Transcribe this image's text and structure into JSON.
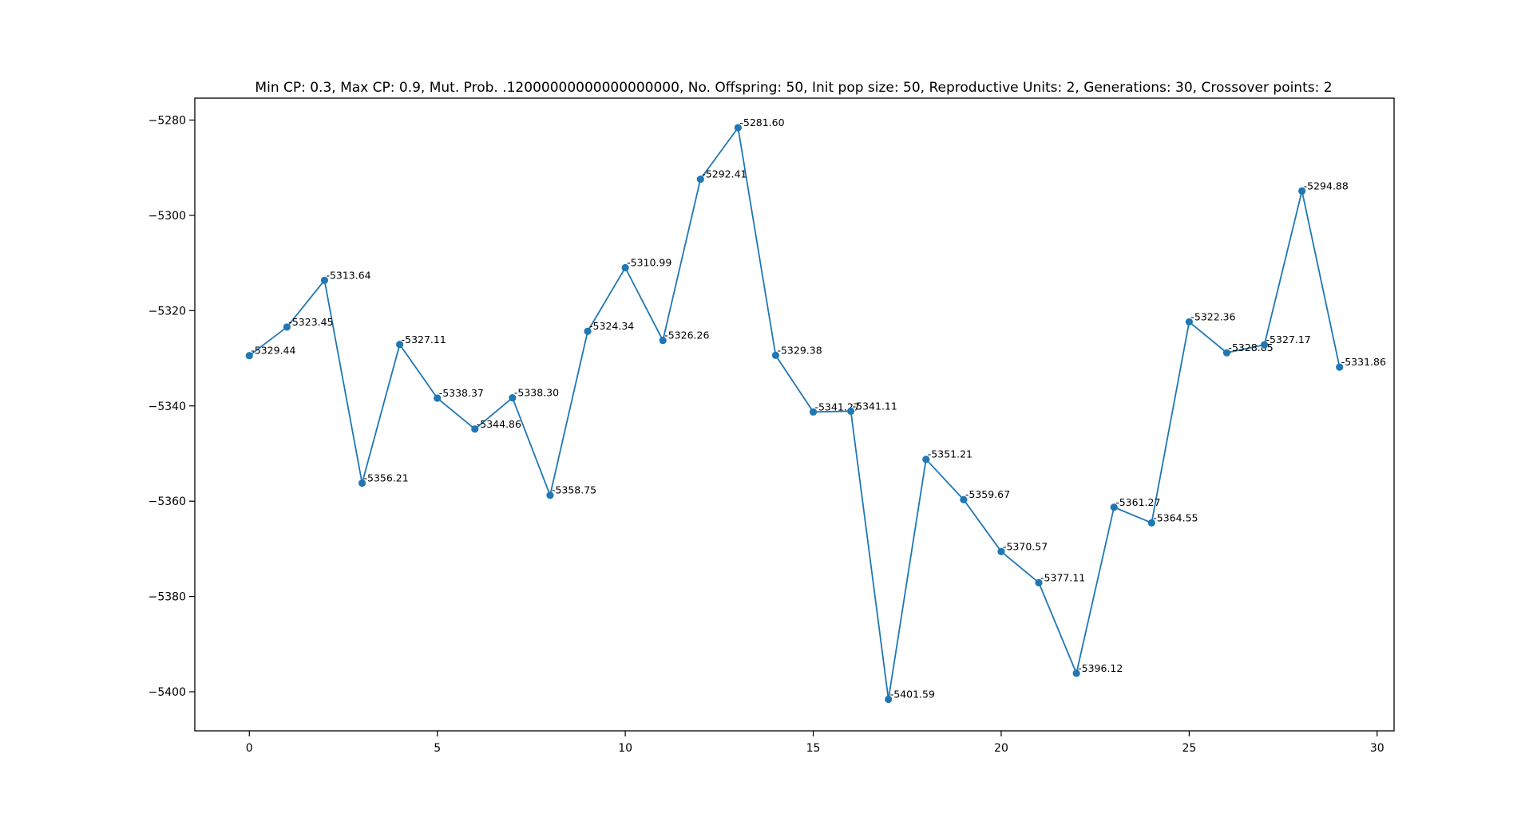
{
  "chart_data": {
    "type": "line",
    "title": "Min CP: 0.3, Max CP: 0.9, Mut. Prob. .12000000000000000000, No. Offspring: 50, Init pop size: 50, Reproductive Units: 2, Generations: 30, Crossover points: 2",
    "xlabel": "",
    "ylabel": "",
    "xlim": [
      -1.45,
      30.45
    ],
    "ylim": [
      -5408.2,
      -5275.4
    ],
    "xticks": [
      0,
      5,
      10,
      15,
      20,
      25,
      30
    ],
    "yticks": [
      -5280,
      -5300,
      -5320,
      -5340,
      -5360,
      -5380,
      -5400
    ],
    "xtick_labels": [
      "0",
      "5",
      "10",
      "15",
      "20",
      "25",
      "30"
    ],
    "ytick_labels": [
      "−5280",
      "−5300",
      "−5320",
      "−5340",
      "−5360",
      "−5380",
      "−5400"
    ],
    "grid": false,
    "legend": "none",
    "colors": {
      "series": "#1f77b4",
      "axes": "#000000",
      "text": "#000000"
    },
    "series": [
      {
        "x": [
          0,
          1,
          2,
          3,
          4,
          5,
          6,
          7,
          8,
          9,
          10,
          11,
          12,
          13,
          14,
          15,
          16,
          17,
          18,
          19,
          20,
          21,
          22,
          23,
          24,
          25,
          26,
          27,
          28,
          29
        ],
        "values": [
          -5329.44,
          -5323.45,
          -5313.64,
          -5356.21,
          -5327.11,
          -5338.37,
          -5344.86,
          -5338.3,
          -5358.75,
          -5324.34,
          -5310.99,
          -5326.26,
          -5292.41,
          -5281.6,
          -5329.38,
          -5341.27,
          -5341.11,
          -5401.59,
          -5351.21,
          -5359.67,
          -5370.57,
          -5377.11,
          -5396.12,
          -5361.27,
          -5364.55,
          -5322.36,
          -5328.85,
          -5327.17,
          -5294.88,
          -5331.86
        ],
        "labels": [
          "-5329.44",
          "-5323.45",
          "-5313.64",
          "-5356.21",
          "-5327.11",
          "-5338.37",
          "-5344.86",
          "-5338.30",
          "-5358.75",
          "-5324.34",
          "-5310.99",
          "-5326.26",
          "-5292.41",
          "-5281.60",
          "-5329.38",
          "-5341.27",
          "-5341.11",
          "-5401.59",
          "-5351.21",
          "-5359.67",
          "-5370.57",
          "-5377.11",
          "-5396.12",
          "-5361.27",
          "-5364.55",
          "-5322.36",
          "-5328.85",
          "-5327.17",
          "-5294.88",
          "-5331.86"
        ]
      }
    ]
  }
}
